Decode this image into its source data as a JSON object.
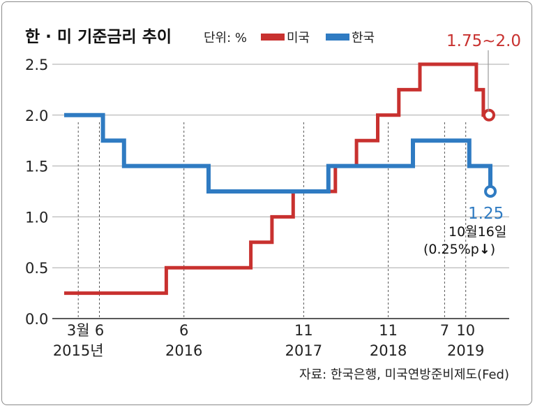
{
  "chart_data": {
    "type": "line",
    "title": "한 · 미 기준금리 추이",
    "unit": "단위: %",
    "source": "자료: 한국은행, 미국연방준비제도(Fed)",
    "ylim": [
      0,
      2.5
    ],
    "yticks": [
      "0.0",
      "0.5",
      "1.0",
      "1.5",
      "2.0",
      "2.5"
    ],
    "xtick_labels": [
      {
        "month": "3월",
        "year": "2015년",
        "t": 2
      },
      {
        "month": "6",
        "year": "",
        "t": 5
      },
      {
        "month": "6",
        "year": "2016",
        "t": 17
      },
      {
        "month": "11",
        "year": "2017",
        "t": 34
      },
      {
        "month": "11",
        "year": "2018",
        "t": 46
      },
      {
        "month": "7",
        "year": "",
        "t": 54
      },
      {
        "month": "10",
        "year": "2019",
        "t": 57
      }
    ],
    "series": [
      {
        "name": "미국",
        "color": "#c8312f",
        "points": [
          [
            0,
            0.25
          ],
          [
            14.5,
            0.25
          ],
          [
            14.5,
            0.5
          ],
          [
            26.5,
            0.5
          ],
          [
            26.5,
            0.75
          ],
          [
            29.5,
            0.75
          ],
          [
            29.5,
            1.0
          ],
          [
            32.5,
            1.0
          ],
          [
            32.5,
            1.25
          ],
          [
            38.5,
            1.25
          ],
          [
            38.5,
            1.5
          ],
          [
            41.5,
            1.5
          ],
          [
            41.5,
            1.75
          ],
          [
            44.5,
            1.75
          ],
          [
            44.5,
            2.0
          ],
          [
            47.5,
            2.0
          ],
          [
            47.5,
            2.25
          ],
          [
            50.5,
            2.25
          ],
          [
            50.5,
            2.5
          ],
          [
            58.5,
            2.5
          ],
          [
            58.5,
            2.25
          ],
          [
            59.5,
            2.25
          ],
          [
            59.5,
            2.0
          ],
          [
            60.3,
            2.0
          ]
        ]
      },
      {
        "name": "한국",
        "color": "#2f7bc2",
        "points": [
          [
            0,
            2.0
          ],
          [
            5.5,
            2.0
          ],
          [
            5.5,
            1.75
          ],
          [
            8.5,
            1.75
          ],
          [
            8.5,
            1.5
          ],
          [
            20.5,
            1.5
          ],
          [
            20.5,
            1.25
          ],
          [
            37.5,
            1.25
          ],
          [
            37.5,
            1.5
          ],
          [
            49.5,
            1.5
          ],
          [
            49.5,
            1.75
          ],
          [
            57.5,
            1.75
          ],
          [
            57.5,
            1.5
          ],
          [
            60.5,
            1.5
          ],
          [
            60.5,
            1.25
          ]
        ]
      }
    ],
    "annotations": {
      "us_latest": "1.75~2.0",
      "kr_latest": "1.25",
      "kr_date": "10월16일",
      "kr_change": "(0.25%p",
      "kr_change_arrow": "↓",
      "kr_change_close": ")"
    }
  }
}
